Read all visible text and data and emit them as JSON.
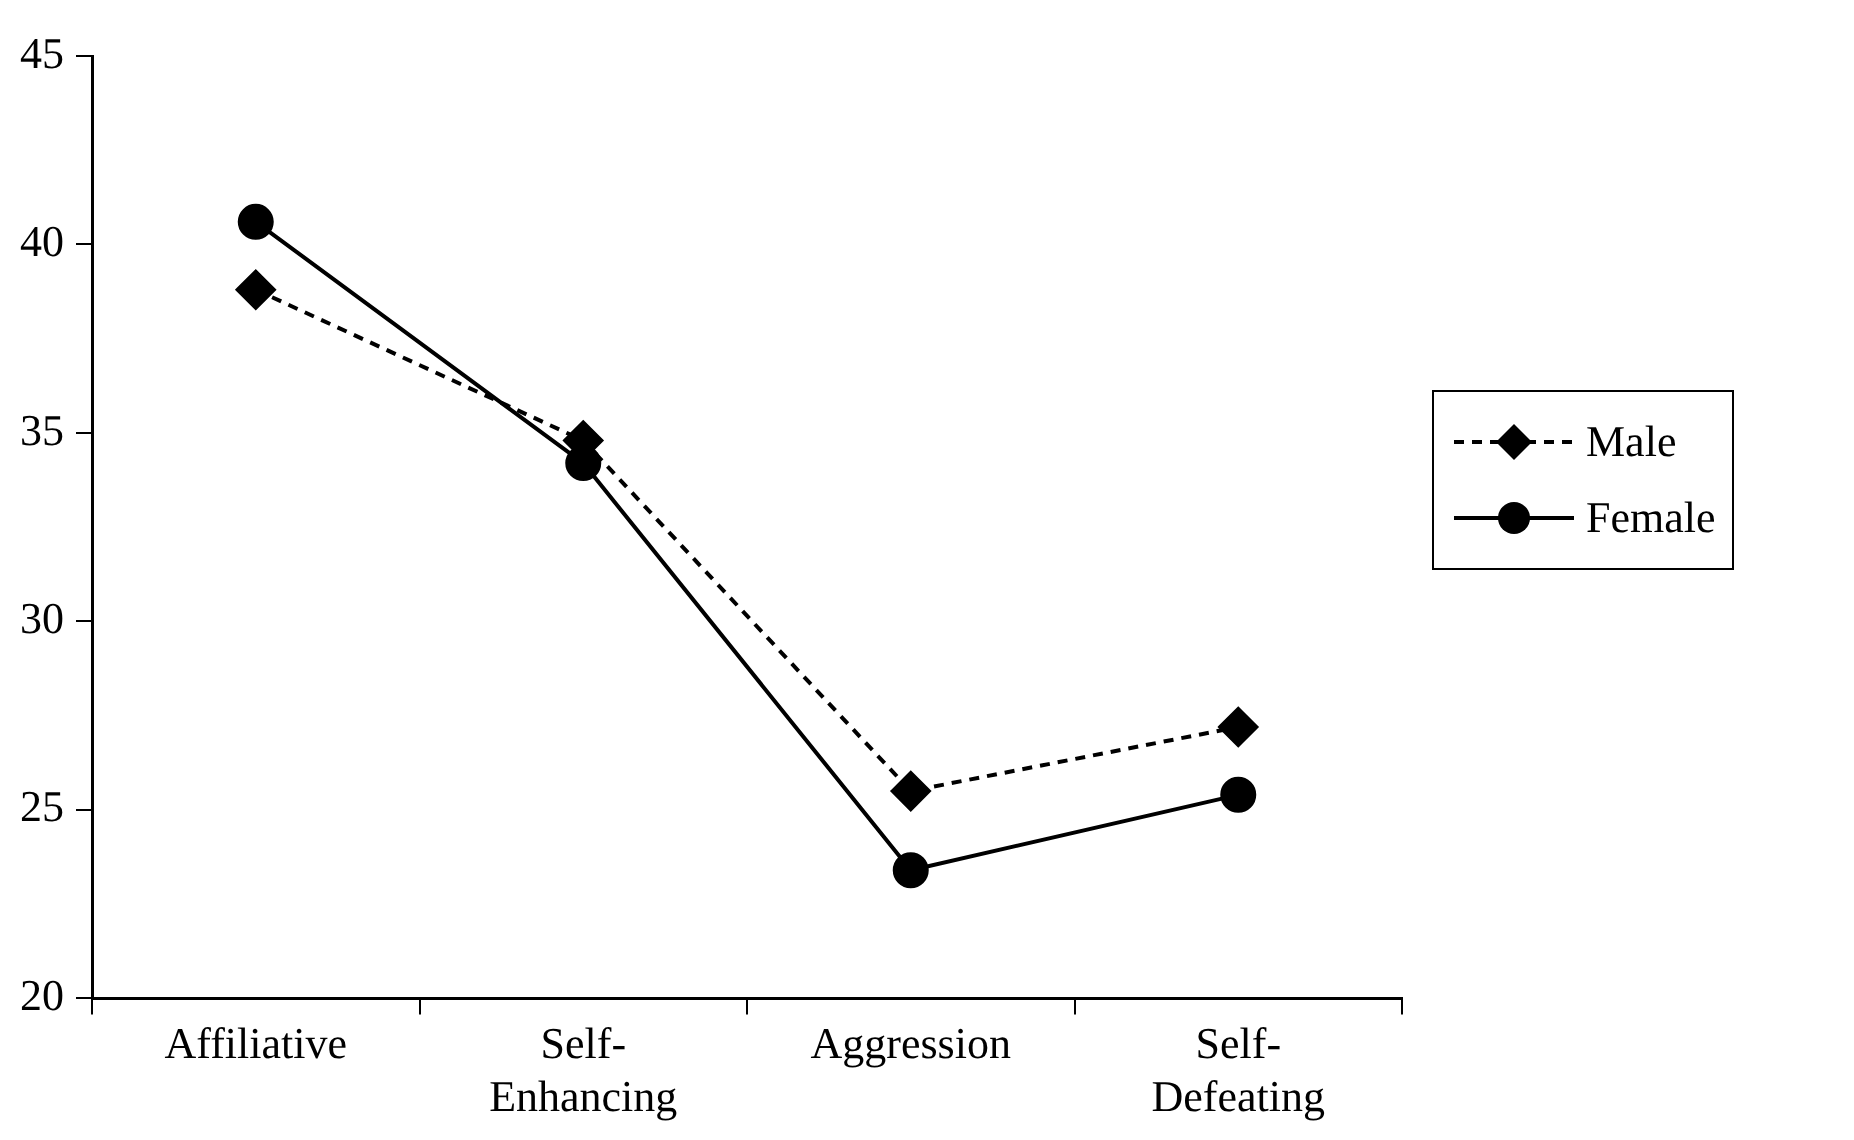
{
  "chart_data": {
    "type": "line",
    "categories": [
      "Affiliative",
      "Self-Enhancing",
      "Aggression",
      "Self-Defeating"
    ],
    "series": [
      {
        "name": "Male",
        "color": "#000000",
        "values": [
          38.8,
          34.8,
          25.5,
          27.2
        ],
        "marker": "diamond",
        "line_style": "dashed"
      },
      {
        "name": "Female",
        "color": "#000000",
        "values": [
          40.6,
          34.2,
          23.4,
          25.4
        ],
        "marker": "circle",
        "line_style": "solid"
      }
    ],
    "ylim": [
      20,
      45
    ],
    "yticks": [
      20,
      25,
      30,
      35,
      40,
      45
    ],
    "grid": false,
    "legend": "right"
  }
}
